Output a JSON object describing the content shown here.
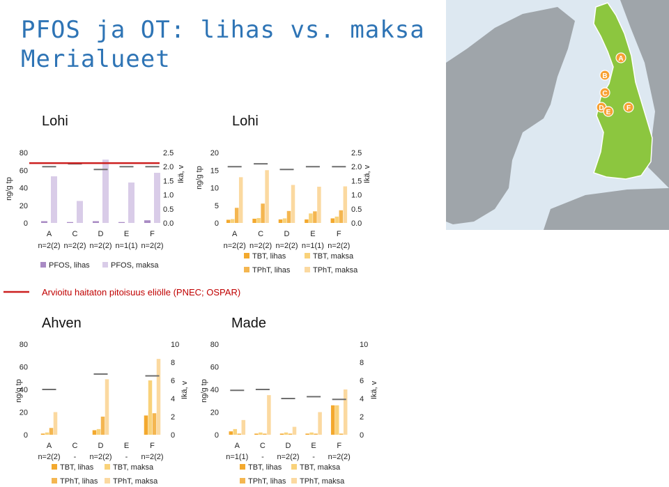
{
  "title_lines": [
    "PFOS ja OT: lihas vs. maksa",
    "Merialueet"
  ],
  "colors": {
    "title": "#2e74b5",
    "pfos_lihas": "#a98bc4",
    "pfos_maksa": "#d9cce8",
    "tbt_lihas": "#f3a92e",
    "tbt_maksa": "#f9d27a",
    "tpht_lihas": "#f4b650",
    "tpht_maksa": "#fbd9a0",
    "age_marker": "#6e6e6e",
    "pnec_line": "#cc1f1f",
    "pnec_text": "#c00000",
    "map_sea": "#dde8f1",
    "map_land": "#9fa5aa",
    "map_finland": "#8cc63f",
    "site_marker": "#f7a133"
  },
  "pnec_label": "Arvioitu haitaton pitoisuus eliölle (PNEC; OSPAR)",
  "map": {
    "icon": "finland-map-icon",
    "sites": [
      "A",
      "B",
      "C",
      "D",
      "E",
      "F"
    ]
  },
  "chart_data": [
    {
      "type": "bar",
      "title": "Lohi",
      "ylabel": "ng/g tp",
      "ylabel2": "Ikä, v",
      "ylim": [
        0,
        80
      ],
      "yticks": [
        "0",
        "20",
        "40",
        "60",
        "80"
      ],
      "y2lim": [
        0,
        2.5
      ],
      "y2ticks": [
        "0.0",
        "0.5",
        "1.0",
        "1.5",
        "2.0",
        "2.5"
      ],
      "categories": [
        "A",
        "C",
        "D",
        "E",
        "F"
      ],
      "n_labels": [
        "n=2(2)",
        "n=2(2)",
        "n=2(2)",
        "n=1(1)",
        "n=2(2)"
      ],
      "series": [
        {
          "name": "PFOS, lihas",
          "values": [
            2,
            1,
            2,
            1,
            3
          ]
        },
        {
          "name": "PFOS, maksa",
          "values": [
            53,
            25,
            72,
            46,
            57
          ]
        }
      ],
      "age_years": [
        2.0,
        2.1,
        1.9,
        2.0,
        2.0
      ],
      "pnec": 68,
      "legend": "bottom"
    },
    {
      "type": "bar",
      "title": "Lohi",
      "ylabel": "ng/g tp",
      "ylabel2": "Ikä, v",
      "ylim": [
        0,
        20
      ],
      "yticks": [
        "0",
        "5",
        "10",
        "15",
        "20"
      ],
      "y2lim": [
        0,
        2.5
      ],
      "y2ticks": [
        "0.0",
        "0.5",
        "1.0",
        "1.5",
        "2.0",
        "2.5"
      ],
      "categories": [
        "A",
        "C",
        "D",
        "E",
        "F"
      ],
      "n_labels": [
        "n=2(2)",
        "n=2(2)",
        "n=2(2)",
        "n=1(1)",
        "n=2(2)"
      ],
      "series": [
        {
          "name": "TBT, lihas",
          "values": [
            0.9,
            1.2,
            1.0,
            1.0,
            1.3
          ]
        },
        {
          "name": "TBT, maksa",
          "values": [
            1.1,
            1.4,
            1.3,
            2.7,
            1.8
          ]
        },
        {
          "name": "TPhT, lihas",
          "values": [
            4.3,
            5.5,
            3.4,
            3.3,
            3.6
          ]
        },
        {
          "name": "TPhT, maksa",
          "values": [
            13.0,
            15.0,
            10.8,
            10.3,
            10.4
          ]
        }
      ],
      "age_years": [
        2.0,
        2.1,
        1.9,
        2.0,
        2.0
      ],
      "legend": "bottom"
    },
    {
      "type": "bar",
      "title": "Ahven",
      "ylabel": "ng/g tp",
      "ylabel2": "Ikä, v",
      "ylim": [
        0,
        80
      ],
      "yticks": [
        "0",
        "20",
        "40",
        "60",
        "80"
      ],
      "y2lim": [
        0,
        10
      ],
      "y2ticks": [
        "0",
        "2",
        "4",
        "6",
        "8",
        "10"
      ],
      "categories": [
        "A",
        "C",
        "D",
        "E",
        "F"
      ],
      "n_labels": [
        "n=2(2)",
        "-",
        "n=2(2)",
        "-",
        "n=2(2)"
      ],
      "series": [
        {
          "name": "TBT, lihas",
          "values": [
            1,
            null,
            4,
            null,
            17
          ]
        },
        {
          "name": "TBT, maksa",
          "values": [
            2,
            null,
            5,
            null,
            48
          ]
        },
        {
          "name": "TPhT, lihas",
          "values": [
            6,
            null,
            16,
            null,
            19
          ]
        },
        {
          "name": "TPhT, maksa",
          "values": [
            20,
            null,
            49,
            null,
            67
          ]
        }
      ],
      "age_years": [
        5.0,
        null,
        6.7,
        null,
        6.5
      ],
      "legend": "bottom"
    },
    {
      "type": "bar",
      "title": "Made",
      "ylabel": "ng/g tp",
      "ylabel2": "Ikä, v",
      "ylim": [
        0,
        80
      ],
      "yticks": [
        "0",
        "20",
        "40",
        "60",
        "80"
      ],
      "y2lim": [
        0,
        10
      ],
      "y2ticks": [
        "0",
        "2",
        "4",
        "6",
        "8",
        "10"
      ],
      "categories": [
        "A",
        "C",
        "D",
        "E",
        "F"
      ],
      "n_labels": [
        "n=1(1)",
        "-",
        "n=2(2)",
        "-",
        "n=2(2)"
      ],
      "series": [
        {
          "name": "TBT, lihas",
          "values": [
            3,
            1,
            1,
            1,
            26
          ]
        },
        {
          "name": "TBT, maksa",
          "values": [
            5,
            2,
            2,
            2,
            26
          ]
        },
        {
          "name": "TPhT, lihas",
          "values": [
            1,
            1,
            1,
            1,
            1
          ]
        },
        {
          "name": "TPhT, maksa",
          "values": [
            13,
            35,
            7,
            20,
            40
          ]
        }
      ],
      "age_years": [
        4.9,
        5.0,
        4.0,
        4.2,
        3.9
      ],
      "legend": "bottom"
    }
  ]
}
